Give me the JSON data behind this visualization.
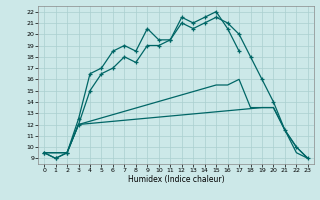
{
  "xlabel": "Humidex (Indice chaleur)",
  "xlim": [
    -0.5,
    23.5
  ],
  "ylim": [
    8.5,
    22.5
  ],
  "xticks": [
    0,
    1,
    2,
    3,
    4,
    5,
    6,
    7,
    8,
    9,
    10,
    11,
    12,
    13,
    14,
    15,
    16,
    17,
    18,
    19,
    20,
    21,
    22,
    23
  ],
  "yticks": [
    9,
    10,
    11,
    12,
    13,
    14,
    15,
    16,
    17,
    18,
    19,
    20,
    21,
    22
  ],
  "background_color": "#cce8e8",
  "grid_color": "#aacfcf",
  "line_color": "#006666",
  "line1_x": [
    0,
    1,
    2,
    3,
    4,
    5,
    6,
    7,
    8,
    9,
    10,
    11,
    12,
    13,
    14,
    15,
    16,
    17
  ],
  "line1_y": [
    9.5,
    9.0,
    9.5,
    12.5,
    16.5,
    17.0,
    18.5,
    19.0,
    18.5,
    20.5,
    19.5,
    19.5,
    21.5,
    21.0,
    21.5,
    22.0,
    20.5,
    18.5
  ],
  "line2_x": [
    0,
    1,
    2,
    3,
    4,
    5,
    6,
    7,
    8,
    9,
    10,
    11,
    12,
    13,
    14,
    15,
    16,
    17,
    18,
    19,
    20,
    21,
    22,
    23
  ],
  "line2_y": [
    9.5,
    9.0,
    9.5,
    12.0,
    15.0,
    16.5,
    17.0,
    18.0,
    17.5,
    19.0,
    19.0,
    19.5,
    21.0,
    20.5,
    21.0,
    21.5,
    21.0,
    20.0,
    18.0,
    16.0,
    14.0,
    11.5,
    10.0,
    9.0
  ],
  "line3_x": [
    0,
    2,
    3,
    15,
    16,
    17,
    18,
    19,
    20,
    21,
    22,
    23
  ],
  "line3_y": [
    9.5,
    9.5,
    12.0,
    15.5,
    15.5,
    16.0,
    13.5,
    13.5,
    13.5,
    11.5,
    10.0,
    9.0
  ],
  "line4_x": [
    0,
    2,
    3,
    19,
    20,
    21,
    22,
    23
  ],
  "line4_y": [
    9.5,
    9.5,
    12.0,
    13.5,
    13.5,
    11.5,
    9.5,
    9.0
  ]
}
